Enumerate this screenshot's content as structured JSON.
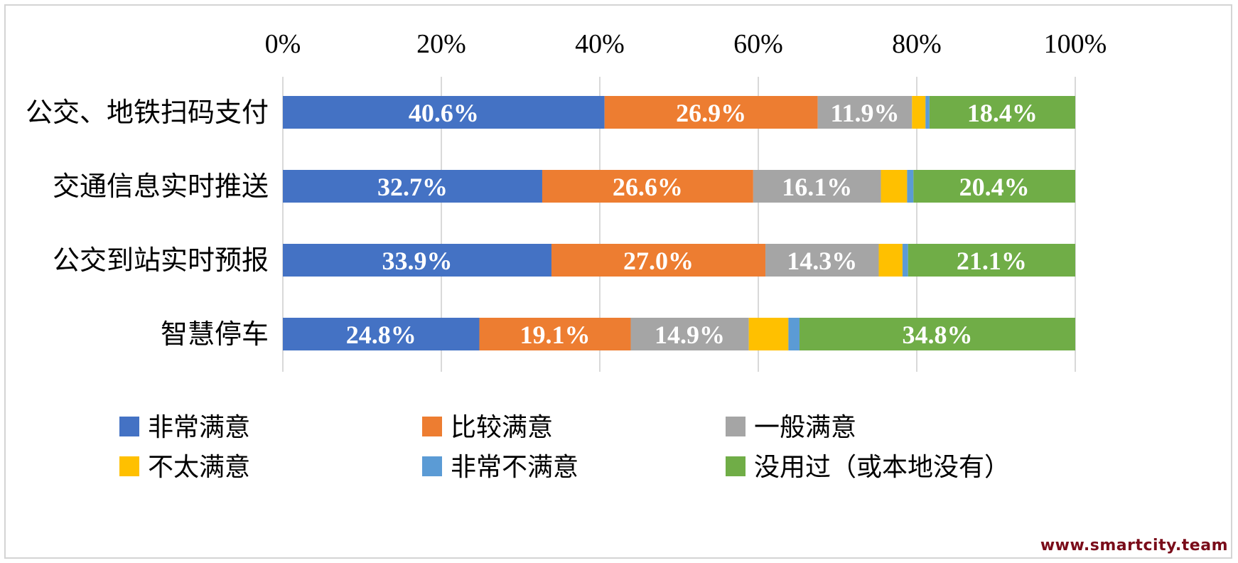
{
  "chart_data": {
    "type": "bar",
    "orientation": "horizontal",
    "stacked": true,
    "categories": [
      "公交、地铁扫码支付",
      "交通信息实时推送",
      "公交到站实时预报",
      "智慧停车"
    ],
    "xlim": [
      0,
      100
    ],
    "x_ticks": [
      "0%",
      "20%",
      "40%",
      "60%",
      "80%",
      "100%"
    ],
    "grid": true,
    "legend_position": "bottom",
    "series": [
      {
        "name": "非常满意",
        "color": "#4472c4",
        "values": [
          40.6,
          32.7,
          33.9,
          24.8
        ],
        "labels": [
          "40.6%",
          "32.7%",
          "33.9%",
          "24.8%"
        ]
      },
      {
        "name": "比较满意",
        "color": "#ed7d31",
        "values": [
          26.9,
          26.6,
          27.0,
          19.1
        ],
        "labels": [
          "26.9%",
          "26.6%",
          "27.0%",
          "19.1%"
        ]
      },
      {
        "name": "一般满意",
        "color": "#a5a5a5",
        "values": [
          11.9,
          16.1,
          14.3,
          14.9
        ],
        "labels": [
          "11.9%",
          "16.1%",
          "14.3%",
          "14.9%"
        ]
      },
      {
        "name": "不太满意",
        "color": "#ffc000",
        "values": [
          1.7,
          3.3,
          3.0,
          5.0
        ],
        "labels": [
          "",
          "",
          "",
          ""
        ]
      },
      {
        "name": "非常不满意",
        "color": "#5b9bd5",
        "values": [
          0.5,
          0.8,
          0.7,
          1.4
        ],
        "labels": [
          "",
          "",
          "",
          ""
        ]
      },
      {
        "name": "没用过（或本地没有）",
        "color": "#70ad47",
        "values": [
          18.4,
          20.4,
          21.1,
          34.8
        ],
        "labels": [
          "18.4%",
          "20.4%",
          "21.1%",
          "34.8%"
        ]
      }
    ]
  },
  "watermark": "www.smartcity.team"
}
